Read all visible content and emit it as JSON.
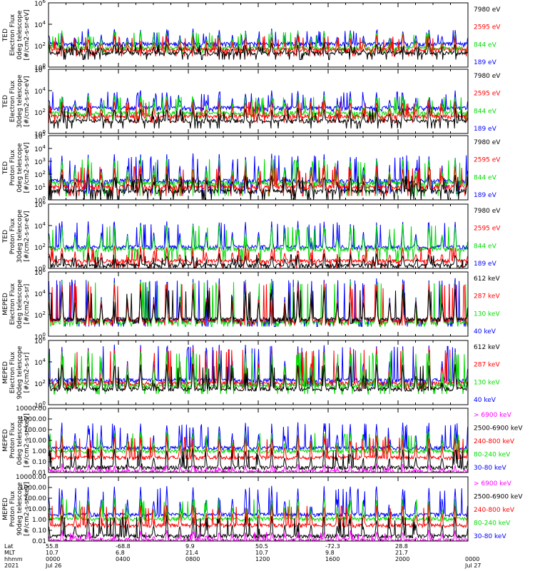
{
  "chart_data": [
    {
      "type": "line",
      "ylabel": [
        "TED",
        "Electron Flux",
        "0deg telescope",
        "[#/cm2-s-sr-eV]"
      ],
      "ylim": [
        1,
        1000000
      ],
      "yscale": "log",
      "yticks": [
        {
          "v": 1,
          "mant": "10",
          "exp": "0"
        },
        {
          "v": 100,
          "mant": "10",
          "exp": "2"
        },
        {
          "v": 10000,
          "mant": "10",
          "exp": "4"
        },
        {
          "v": 1000000,
          "mant": "10",
          "exp": "6"
        }
      ],
      "legend": [
        {
          "label": "7980 eV",
          "color": "#000000"
        },
        {
          "label": "2595 eV",
          "color": "#ff0000"
        },
        {
          "label": "844 eV",
          "color": "#00dd00"
        },
        {
          "label": "189 eV",
          "color": "#0000ff"
        }
      ],
      "series": [
        {
          "color": "#0000ff",
          "base": 150,
          "peak": 3000,
          "floor": 80
        },
        {
          "color": "#00dd00",
          "base": 60,
          "peak": 2000,
          "floor": 20
        },
        {
          "color": "#ff0000",
          "base": 40,
          "peak": 800,
          "floor": 10
        },
        {
          "color": "#000000",
          "base": 20,
          "peak": 150,
          "floor": 5
        }
      ]
    },
    {
      "type": "line",
      "ylabel": [
        "TED",
        "Electron Flux",
        "30deg telescope",
        "[#/cm2-s-sr-eV]"
      ],
      "ylim": [
        1,
        1000000
      ],
      "yscale": "log",
      "yticks": [
        {
          "v": 1,
          "mant": "10",
          "exp": "0"
        },
        {
          "v": 100,
          "mant": "10",
          "exp": "2"
        },
        {
          "v": 10000,
          "mant": "10",
          "exp": "4"
        },
        {
          "v": 1000000,
          "mant": "10",
          "exp": "6"
        }
      ],
      "legend": [
        {
          "label": "7980 eV",
          "color": "#000000"
        },
        {
          "label": "2595 eV",
          "color": "#ff0000"
        },
        {
          "label": "844 eV",
          "color": "#00dd00"
        },
        {
          "label": "189 eV",
          "color": "#0000ff"
        }
      ],
      "series": [
        {
          "color": "#0000ff",
          "base": 250,
          "peak": 8000,
          "floor": 120
        },
        {
          "color": "#00dd00",
          "base": 80,
          "peak": 3000,
          "floor": 20
        },
        {
          "color": "#ff0000",
          "base": 40,
          "peak": 1000,
          "floor": 10
        },
        {
          "color": "#000000",
          "base": 15,
          "peak": 200,
          "floor": 3
        }
      ]
    },
    {
      "type": "line",
      "ylabel": [
        "TED",
        "Proton Flux",
        "0deg telescope",
        "[#/cm2-s-sr-eV]"
      ],
      "ylim": [
        1,
        100000
      ],
      "yscale": "log",
      "yticks": [
        {
          "v": 1,
          "mant": "10",
          "exp": "0"
        },
        {
          "v": 10,
          "mant": "10",
          "exp": "1"
        },
        {
          "v": 100,
          "mant": "10",
          "exp": "2"
        },
        {
          "v": 1000,
          "mant": "10",
          "exp": "3"
        },
        {
          "v": 10000,
          "mant": "10",
          "exp": "4"
        },
        {
          "v": 100000,
          "mant": "10",
          "exp": "5"
        }
      ],
      "legend": [
        {
          "label": "7980 eV",
          "color": "#000000"
        },
        {
          "label": "2595 eV",
          "color": "#ff0000"
        },
        {
          "label": "844 eV",
          "color": "#00dd00"
        },
        {
          "label": "189 eV",
          "color": "#0000ff"
        }
      ],
      "series": [
        {
          "color": "#0000ff",
          "base": 30,
          "peak": 3000,
          "floor": 3
        },
        {
          "color": "#00dd00",
          "base": 20,
          "peak": 1500,
          "floor": 2
        },
        {
          "color": "#ff0000",
          "base": 10,
          "peak": 400,
          "floor": 2
        },
        {
          "color": "#000000",
          "base": 5,
          "peak": 80,
          "floor": 1
        }
      ]
    },
    {
      "type": "line",
      "ylabel": [
        "TED",
        "Proton Flux",
        "30deg telescope",
        "[#/cm2-s-sr-eV]"
      ],
      "ylim": [
        1,
        1000000
      ],
      "yscale": "log",
      "yticks": [
        {
          "v": 1,
          "mant": "10",
          "exp": "0"
        },
        {
          "v": 100,
          "mant": "10",
          "exp": "2"
        },
        {
          "v": 10000,
          "mant": "10",
          "exp": "4"
        },
        {
          "v": 1000000,
          "mant": "10",
          "exp": "6"
        }
      ],
      "legend": [
        {
          "label": "7980 eV",
          "color": "#000000"
        },
        {
          "label": "2595 eV",
          "color": "#ff0000"
        },
        {
          "label": "844 eV",
          "color": "#00dd00"
        },
        {
          "label": "189 eV",
          "color": "#0000ff"
        }
      ],
      "series": [
        {
          "color": "#0000ff",
          "base": 100,
          "peak": 20000,
          "floor": 60
        },
        {
          "color": "#00dd00",
          "base": 60,
          "peak": 10000,
          "floor": 5
        },
        {
          "color": "#ff0000",
          "base": 5,
          "peak": 100,
          "floor": 1
        },
        {
          "color": "#000000",
          "base": 2,
          "peak": 20,
          "floor": 1
        }
      ]
    },
    {
      "type": "line",
      "ylabel": [
        "MEPED",
        "Electron Flux",
        "0deg telescope",
        "[#/cm2-s-sr]"
      ],
      "ylim": [
        1,
        1000000
      ],
      "yscale": "log",
      "yticks": [
        {
          "v": 1,
          "mant": "10",
          "exp": "0"
        },
        {
          "v": 100,
          "mant": "10",
          "exp": "2"
        },
        {
          "v": 10000,
          "mant": "10",
          "exp": "4"
        },
        {
          "v": 1000000,
          "mant": "10",
          "exp": "6"
        }
      ],
      "legend": [
        {
          "label": "612 keV",
          "color": "#000000"
        },
        {
          "label": "287 keV",
          "color": "#ff0000"
        },
        {
          "label": "130 keV",
          "color": "#00dd00"
        },
        {
          "label": "40 keV",
          "color": "#0000ff"
        }
      ],
      "series": [
        {
          "color": "#0000ff",
          "base": 30,
          "peak": 200000,
          "floor": 8
        },
        {
          "color": "#00dd00",
          "base": 20,
          "peak": 120000,
          "floor": 8
        },
        {
          "color": "#ff0000",
          "base": 30,
          "peak": 80000,
          "floor": 10
        },
        {
          "color": "#000000",
          "base": 40,
          "peak": 20000,
          "floor": 15
        }
      ]
    },
    {
      "type": "line",
      "ylabel": [
        "MEPED",
        "Electron Flux",
        "90deg telescope",
        "[#/cm2-s-sr]"
      ],
      "ylim": [
        1,
        1000000
      ],
      "yscale": "log",
      "yticks": [
        {
          "v": 1,
          "mant": "10",
          "exp": "0"
        },
        {
          "v": 100,
          "mant": "10",
          "exp": "2"
        },
        {
          "v": 10000,
          "mant": "10",
          "exp": "4"
        },
        {
          "v": 1000000,
          "mant": "10",
          "exp": "6"
        }
      ],
      "legend": [
        {
          "label": "612 keV",
          "color": "#000000"
        },
        {
          "label": "287 keV",
          "color": "#ff0000"
        },
        {
          "label": "130 keV",
          "color": "#00dd00"
        },
        {
          "label": "40 keV",
          "color": "#0000ff"
        }
      ],
      "series": [
        {
          "color": "#0000ff",
          "base": 200,
          "peak": 300000,
          "floor": 50
        },
        {
          "color": "#ff0000",
          "base": 100,
          "peak": 150000,
          "floor": 30
        },
        {
          "color": "#00dd00",
          "base": 60,
          "peak": 80000,
          "floor": 10
        },
        {
          "color": "#000000",
          "base": 30,
          "peak": 5000,
          "floor": 20
        }
      ]
    },
    {
      "type": "line",
      "ylabel": [
        "MEPED",
        "Proton Flux",
        "0deg telescope",
        "[#/cm2-s-sr-keV]"
      ],
      "ylim": [
        0.01,
        10000
      ],
      "yscale": "log",
      "yticks": [
        {
          "v": 0.01,
          "label": "0.01"
        },
        {
          "v": 0.1,
          "label": "0.10"
        },
        {
          "v": 1,
          "label": "1.00"
        },
        {
          "v": 10,
          "label": "10.00"
        },
        {
          "v": 100,
          "label": "100.00"
        },
        {
          "v": 1000,
          "label": "1000.00"
        },
        {
          "v": 10000,
          "label": "10000.00"
        }
      ],
      "legend": [
        {
          "label": "> 6900 keV",
          "color": "#ff00ff"
        },
        {
          "label": "2500-6900 keV",
          "color": "#000000"
        },
        {
          "label": "240-800 keV",
          "color": "#ff0000"
        },
        {
          "label": "80-240 keV",
          "color": "#00dd00"
        },
        {
          "label": "30-80 keV",
          "color": "#0000ff"
        }
      ],
      "series": [
        {
          "color": "#0000ff",
          "base": 2,
          "peak": 400,
          "floor": 1.6
        },
        {
          "color": "#00dd00",
          "base": 1,
          "peak": 50,
          "floor": 0.8
        },
        {
          "color": "#ff0000",
          "base": 0.25,
          "peak": 20,
          "floor": 0.2
        },
        {
          "color": "#000000",
          "base": 0.03,
          "peak": 1.5,
          "floor": 0.02
        },
        {
          "color": "#ff00ff",
          "base": 0.012,
          "peak": 0.05,
          "floor": 0.011
        }
      ]
    },
    {
      "type": "line",
      "ylabel": [
        "MEPED",
        "Proton Flux",
        "90deg telescope",
        "[#/cm2-s-sr-keV]"
      ],
      "ylim": [
        0.01,
        10000
      ],
      "yscale": "log",
      "yticks": [
        {
          "v": 0.01,
          "label": "0.01"
        },
        {
          "v": 0.1,
          "label": "0.10"
        },
        {
          "v": 1,
          "label": "1.00"
        },
        {
          "v": 10,
          "label": "10.00"
        },
        {
          "v": 100,
          "label": "100.00"
        },
        {
          "v": 1000,
          "label": "1000.00"
        },
        {
          "v": 10000,
          "label": "10000.00"
        }
      ],
      "legend": [
        {
          "label": "> 6900 keV",
          "color": "#ff00ff"
        },
        {
          "label": "2500-6900 keV",
          "color": "#000000"
        },
        {
          "label": "240-800 keV",
          "color": "#ff0000"
        },
        {
          "label": "80-240 keV",
          "color": "#00dd00"
        },
        {
          "label": "30-80 keV",
          "color": "#0000ff"
        }
      ],
      "series": [
        {
          "color": "#0000ff",
          "base": 3,
          "peak": 1000,
          "floor": 2.5
        },
        {
          "color": "#00dd00",
          "base": 1.2,
          "peak": 80,
          "floor": 1
        },
        {
          "color": "#ff0000",
          "base": 0.3,
          "peak": 20,
          "floor": 0.25
        },
        {
          "color": "#000000",
          "base": 0.03,
          "peak": 2,
          "floor": 0.02
        },
        {
          "color": "#ff00ff",
          "base": 0.012,
          "peak": 0.08,
          "floor": 0.011
        }
      ]
    }
  ],
  "x_axis": {
    "row_labels": [
      "Lat",
      "MLT",
      "hhmm",
      "2021"
    ],
    "columns": [
      {
        "lat": "55.8",
        "mlt": "10.7",
        "hhmm": "0000",
        "date": "Jul 26"
      },
      {
        "lat": "-68.8",
        "mlt": "6.8",
        "hhmm": "0400",
        "date": ""
      },
      {
        "lat": "9.9",
        "mlt": "21.4",
        "hhmm": "0800",
        "date": ""
      },
      {
        "lat": "50.5",
        "mlt": "10.7",
        "hhmm": "1200",
        "date": ""
      },
      {
        "lat": "-72.3",
        "mlt": "9.8",
        "hhmm": "1600",
        "date": ""
      },
      {
        "lat": "28.8",
        "mlt": "21.7",
        "hhmm": "2000",
        "date": ""
      },
      {
        "lat": "",
        "mlt": "",
        "hhmm": "0000",
        "date": "Jul 27"
      }
    ],
    "orbit_count": 16
  }
}
